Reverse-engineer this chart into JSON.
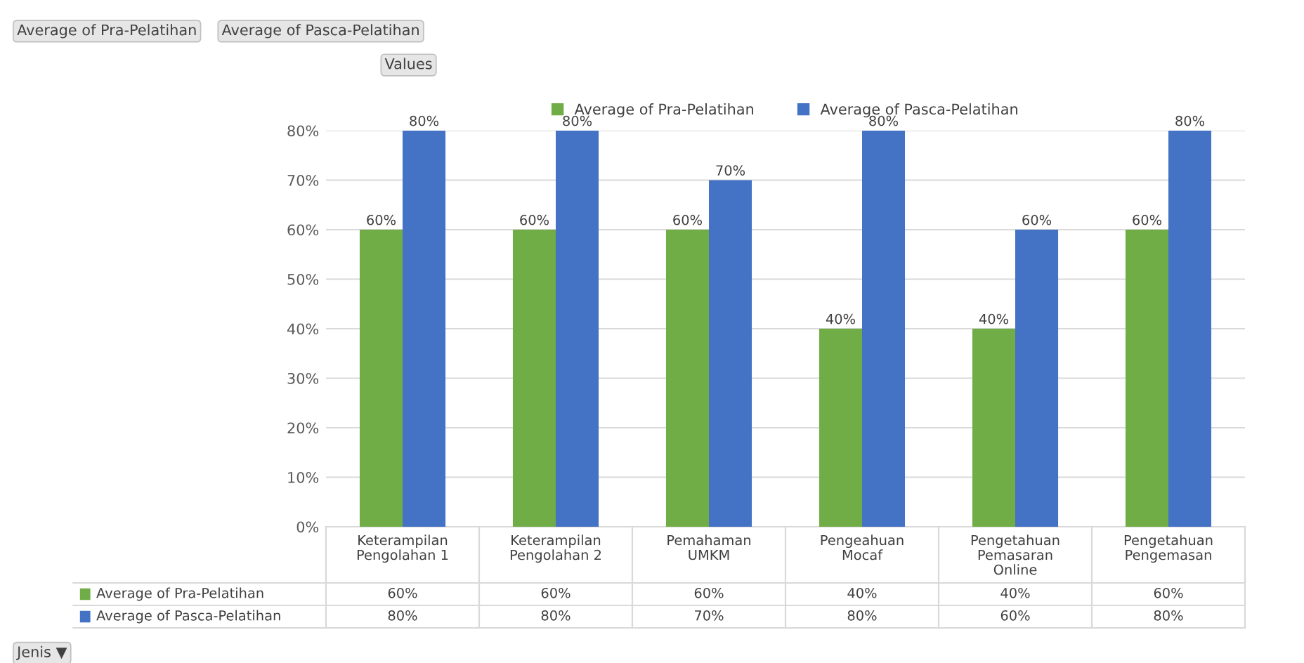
{
  "chart_data": {
    "type": "bar",
    "categories": [
      "Keterampilan\nPengolahan 1",
      "Keterampilan\nPengolahan 2",
      "Pemahaman\nUMKM",
      "Pengeahuan\nMocaf",
      "Pengetahuan\nPemasaran\nOnline",
      "Pengetahuan\nPengemasan"
    ],
    "series": [
      {
        "name": "Average of Pra-Pelatihan",
        "color": "#70ad47",
        "values": [
          60,
          60,
          60,
          40,
          40,
          60
        ],
        "value_labels": [
          "60%",
          "60%",
          "60%",
          "40%",
          "40%",
          "60%"
        ]
      },
      {
        "name": "Average of Pasca-Pelatihan",
        "color": "#4472c4",
        "values": [
          80,
          80,
          70,
          80,
          60,
          80
        ],
        "value_labels": [
          "80%",
          "80%",
          "70%",
          "80%",
          "60%",
          "80%"
        ]
      }
    ],
    "ylim": [
      0,
      80
    ],
    "yticks": [
      {
        "value": 0,
        "label": "0%"
      },
      {
        "value": 10,
        "label": "10%"
      },
      {
        "value": 20,
        "label": "20%"
      },
      {
        "value": 30,
        "label": "30%"
      },
      {
        "value": 40,
        "label": "40%"
      },
      {
        "value": 50,
        "label": "50%"
      },
      {
        "value": 60,
        "label": "60%"
      },
      {
        "value": 70,
        "label": "70%"
      },
      {
        "value": 80,
        "label": "80%"
      }
    ],
    "grid": "y",
    "legend": "top",
    "annotations": [
      "Average of Pra-Pelatihan",
      "Average of Pasca-Pelatihan",
      "Values",
      "Jenis ▼"
    ]
  }
}
